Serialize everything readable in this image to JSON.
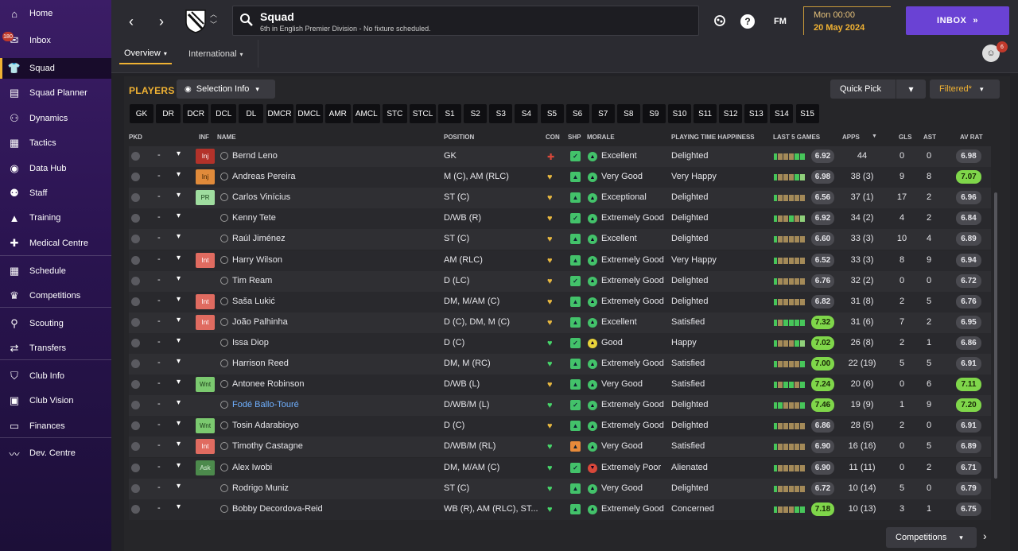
{
  "sidebar": {
    "items": [
      {
        "label": "Home",
        "icon": "home-icon",
        "glyph": "⌂"
      },
      {
        "label": "Inbox",
        "icon": "inbox-icon",
        "glyph": "✉",
        "badge": "180"
      },
      {
        "label": "Squad",
        "icon": "shirt-icon",
        "glyph": "👕"
      },
      {
        "label": "Squad Planner",
        "icon": "document-icon",
        "glyph": "▤"
      },
      {
        "label": "Dynamics",
        "icon": "people-icon",
        "glyph": "⚇"
      },
      {
        "label": "Tactics",
        "icon": "tactics-board-icon",
        "glyph": "▦"
      },
      {
        "label": "Data Hub",
        "icon": "globe-icon",
        "glyph": "◉"
      },
      {
        "label": "Staff",
        "icon": "staff-icon",
        "glyph": "⚉"
      },
      {
        "label": "Training",
        "icon": "cone-icon",
        "glyph": "▲"
      },
      {
        "label": "Medical Centre",
        "icon": "medical-icon",
        "glyph": "✚"
      },
      {
        "label": "Schedule",
        "icon": "calendar-icon",
        "glyph": "▦"
      },
      {
        "label": "Competitions",
        "icon": "trophy-icon",
        "glyph": "♛"
      },
      {
        "label": "Scouting",
        "icon": "search-icon",
        "glyph": "⚲"
      },
      {
        "label": "Transfers",
        "icon": "transfer-icon",
        "glyph": "⇄"
      },
      {
        "label": "Club Info",
        "icon": "shield-icon",
        "glyph": "⛉"
      },
      {
        "label": "Club Vision",
        "icon": "briefcase-icon",
        "glyph": "▣"
      },
      {
        "label": "Finances",
        "icon": "money-icon",
        "glyph": "▭"
      },
      {
        "label": "Dev. Centre",
        "icon": "trend-icon",
        "glyph": "〰"
      }
    ]
  },
  "header": {
    "title": "Squad",
    "subtitle": "6th in English Premier Division - No fixture scheduled.",
    "date_time": "Mon 00:00",
    "date": "20 May 2024",
    "inbox_label": "INBOX",
    "fm_label": "FM",
    "help_label": "?",
    "avatar_badge": "6"
  },
  "tabs": [
    {
      "label": "Overview"
    },
    {
      "label": "International"
    }
  ],
  "toolbar": {
    "players_title": "PLAYERS",
    "selection_info": "Selection Info",
    "quick_pick": "Quick Pick",
    "filtered": "Filtered*"
  },
  "positions": [
    "GK",
    "DR",
    "DCR",
    "DCL",
    "DL",
    "DMCR",
    "DMCL",
    "AMR",
    "AMCL",
    "STC",
    "STCL",
    "S1",
    "S2",
    "S3",
    "S4",
    "S5",
    "S6",
    "S7",
    "S8",
    "S9",
    "S10",
    "S11",
    "S12",
    "S13",
    "S14",
    "S15"
  ],
  "columns": {
    "pkd": "PKD",
    "inf": "INF",
    "name": "NAME",
    "position": "POSITION",
    "con": "CON",
    "shp": "SHP",
    "morale": "MORALE",
    "happiness": "PLAYING TIME HAPPINESS",
    "last5": "LAST 5 GAMES",
    "apps": "APPS",
    "gls": "GLS",
    "ast": "AST",
    "avrat": "AV RAT"
  },
  "players": [
    {
      "inf": "Inj",
      "name": "Bernd Leno",
      "position": "GK",
      "con": "injured",
      "morale": "Excellent",
      "happiness": "Delighted",
      "last5": "6.92",
      "apps": "44",
      "gls": "0",
      "ast": "0",
      "avrat": "6.98"
    },
    {
      "inf": "Inj",
      "name": "Andreas Pereira",
      "position": "M (C), AM (RLC)",
      "con": "ok",
      "morale": "Very Good",
      "happiness": "Very Happy",
      "last5": "6.98",
      "apps": "38 (3)",
      "gls": "9",
      "ast": "8",
      "avrat": "7.07"
    },
    {
      "inf": "PR",
      "name": "Carlos Vinícius",
      "position": "ST (C)",
      "con": "ok",
      "morale": "Exceptional",
      "happiness": "Delighted",
      "last5": "6.56",
      "apps": "37 (1)",
      "gls": "17",
      "ast": "2",
      "avrat": "6.96"
    },
    {
      "inf": "",
      "name": "Kenny Tete",
      "position": "D/WB (R)",
      "con": "ok",
      "morale": "Extremely Good",
      "happiness": "Delighted",
      "last5": "6.92",
      "apps": "34 (2)",
      "gls": "4",
      "ast": "2",
      "avrat": "6.84"
    },
    {
      "inf": "",
      "name": "Raúl Jiménez",
      "position": "ST (C)",
      "con": "ok",
      "morale": "Excellent",
      "happiness": "Delighted",
      "last5": "6.60",
      "apps": "33 (3)",
      "gls": "10",
      "ast": "4",
      "avrat": "6.89"
    },
    {
      "inf": "Int",
      "name": "Harry Wilson",
      "position": "AM (RLC)",
      "con": "ok",
      "morale": "Extremely Good",
      "happiness": "Very Happy",
      "last5": "6.52",
      "apps": "33 (3)",
      "gls": "8",
      "ast": "9",
      "avrat": "6.94"
    },
    {
      "inf": "",
      "name": "Tim Ream",
      "position": "D (LC)",
      "con": "ok",
      "morale": "Extremely Good",
      "happiness": "Delighted",
      "last5": "6.76",
      "apps": "32 (2)",
      "gls": "0",
      "ast": "0",
      "avrat": "6.72"
    },
    {
      "inf": "Int",
      "name": "Saša Lukić",
      "position": "DM, M/AM (C)",
      "con": "ok",
      "morale": "Extremely Good",
      "happiness": "Delighted",
      "last5": "6.82",
      "apps": "31 (8)",
      "gls": "2",
      "ast": "5",
      "avrat": "6.76"
    },
    {
      "inf": "Int",
      "name": "João Palhinha",
      "position": "D (C), DM, M (C)",
      "con": "ok",
      "morale": "Excellent",
      "happiness": "Satisfied",
      "last5": "7.32",
      "apps": "31 (6)",
      "gls": "7",
      "ast": "2",
      "avrat": "6.95"
    },
    {
      "inf": "",
      "name": "Issa Diop",
      "position": "D (C)",
      "con": "full",
      "morale": "Good",
      "happiness": "Happy",
      "last5": "7.02",
      "apps": "26 (8)",
      "gls": "2",
      "ast": "1",
      "avrat": "6.86"
    },
    {
      "inf": "",
      "name": "Harrison Reed",
      "position": "DM, M (RC)",
      "con": "full",
      "morale": "Extremely Good",
      "happiness": "Satisfied",
      "last5": "7.00",
      "apps": "22 (19)",
      "gls": "5",
      "ast": "5",
      "avrat": "6.91"
    },
    {
      "inf": "Wnt",
      "name": "Antonee Robinson",
      "position": "D/WB (L)",
      "con": "ok",
      "morale": "Very Good",
      "happiness": "Satisfied",
      "last5": "7.24",
      "apps": "20 (6)",
      "gls": "0",
      "ast": "6",
      "avrat": "7.11"
    },
    {
      "inf": "",
      "name": "Fodé Ballo-Touré",
      "position": "D/WB/M (L)",
      "con": "full",
      "morale": "Extremely Good",
      "happiness": "Delighted",
      "last5": "7.46",
      "apps": "19 (9)",
      "gls": "1",
      "ast": "9",
      "avrat": "7.20"
    },
    {
      "inf": "Wnt",
      "name": "Tosin Adarabioyo",
      "position": "D (C)",
      "con": "ok",
      "morale": "Extremely Good",
      "happiness": "Delighted",
      "last5": "6.86",
      "apps": "28 (5)",
      "gls": "2",
      "ast": "0",
      "avrat": "6.91"
    },
    {
      "inf": "Int",
      "name": "Timothy Castagne",
      "position": "D/WB/M (RL)",
      "con": "full",
      "morale": "Very Good",
      "happiness": "Satisfied",
      "last5": "6.90",
      "apps": "16 (16)",
      "gls": "0",
      "ast": "5",
      "avrat": "6.89"
    },
    {
      "inf": "Ask",
      "name": "Alex Iwobi",
      "position": "DM, M/AM (C)",
      "con": "full",
      "morale": "Extremely Poor",
      "happiness": "Alienated",
      "last5": "6.90",
      "apps": "11 (11)",
      "gls": "0",
      "ast": "2",
      "avrat": "6.71"
    },
    {
      "inf": "",
      "name": "Rodrigo Muniz",
      "position": "ST (C)",
      "con": "full",
      "morale": "Very Good",
      "happiness": "Delighted",
      "last5": "6.72",
      "apps": "10 (14)",
      "gls": "5",
      "ast": "0",
      "avrat": "6.79"
    },
    {
      "inf": "",
      "name": "Bobby Decordova-Reid",
      "position": "WB (R), AM (RLC), ST...",
      "con": "full",
      "morale": "Extremely Good",
      "happiness": "Concerned",
      "last5": "7.18",
      "apps": "10 (13)",
      "gls": "3",
      "ast": "1",
      "avrat": "6.75"
    }
  ],
  "footer": {
    "competitions": "Competitions"
  },
  "colors": {
    "accent": "#f0b233",
    "inbox": "#6a42d4",
    "sidebar": "#3b1d66",
    "positive": "#7fd64a"
  }
}
